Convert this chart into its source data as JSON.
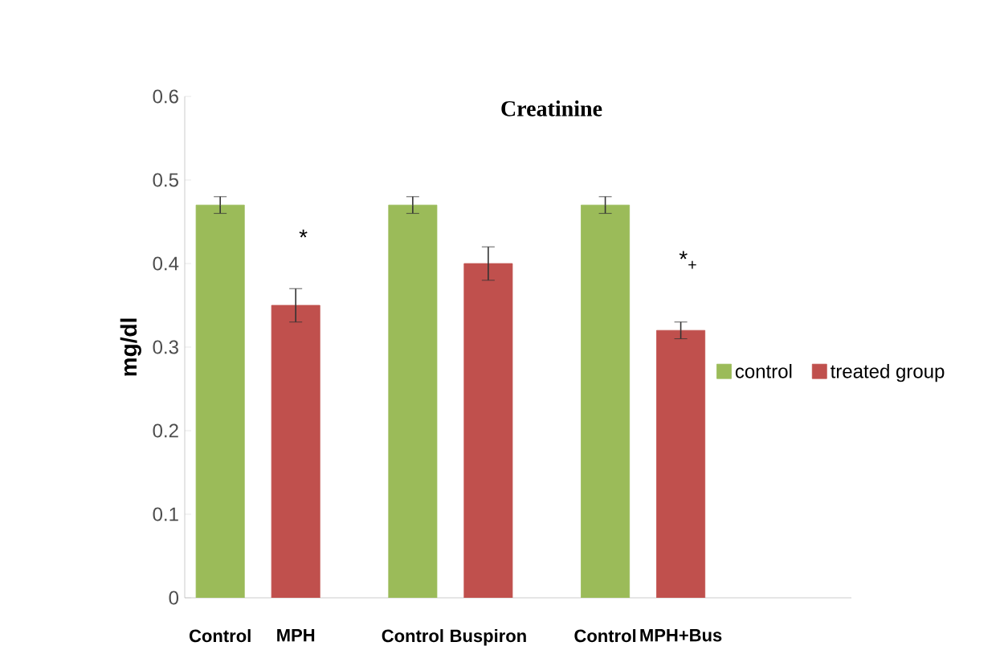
{
  "chart_data": {
    "type": "bar",
    "title": "Creatinine",
    "ylabel": "mg/dl",
    "categories": [
      "Control",
      "MPH",
      "Control",
      "Buspiron",
      "Control",
      "MPH+Bus"
    ],
    "series": [
      {
        "name": "control",
        "color": "#9bbb59",
        "values": [
          0.47,
          null,
          0.47,
          null,
          0.47,
          null
        ],
        "errors": [
          0.01,
          null,
          0.01,
          null,
          0.01,
          null
        ]
      },
      {
        "name": "treated group",
        "color": "#c0504d",
        "values": [
          null,
          0.35,
          null,
          0.4,
          null,
          0.32
        ],
        "errors": [
          null,
          0.02,
          null,
          0.02,
          null,
          0.01
        ]
      }
    ],
    "ylim": [
      0,
      0.6
    ],
    "yticks": [
      0,
      0.1,
      0.2,
      0.3,
      0.4,
      0.5,
      0.6
    ],
    "annotations": [
      "*",
      "*$_{+}$"
    ],
    "legend": "right",
    "grid": false
  }
}
